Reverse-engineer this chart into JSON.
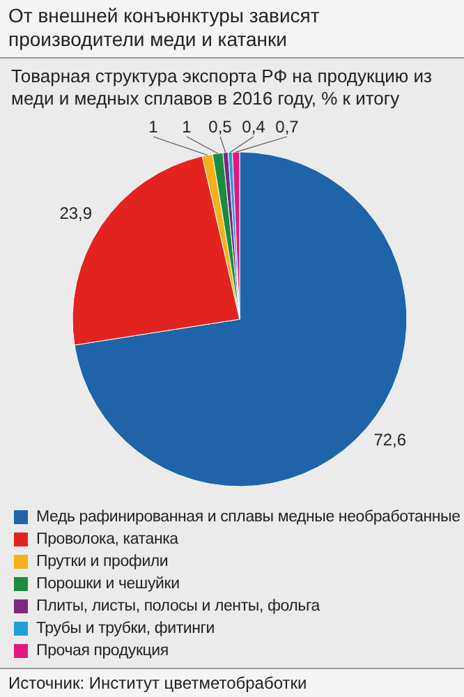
{
  "chart_data": {
    "type": "pie",
    "title": "От внешней конъюнктуры зависят производители меди и катанки",
    "subtitle": "Товарная структура экспорта РФ на продукцию из меди и медных сплавов в 2016 году, % к итогу",
    "categories": [
      "Медь рафинированная и сплавы медные необработанные",
      "Проволока, катанка",
      "Прутки и профили",
      "Порошки и чешуйки",
      "Плиты, листы, полосы и ленты, фольга",
      "Трубы и трубки, фитинги",
      "Прочая продукция"
    ],
    "values": [
      72.6,
      23.9,
      1,
      1,
      0.5,
      0.4,
      0.7
    ],
    "value_labels": [
      "72,6",
      "23,9",
      "1",
      "1",
      "0,5",
      "0,4",
      "0,7"
    ],
    "colors": [
      "#1f64a8",
      "#e3231f",
      "#f5b117",
      "#1b8c3e",
      "#7b2a7f",
      "#1ea0dc",
      "#e2187d"
    ],
    "legend": "bottom",
    "annotations": [
      "Источник: Институт цветметобработки"
    ]
  }
}
